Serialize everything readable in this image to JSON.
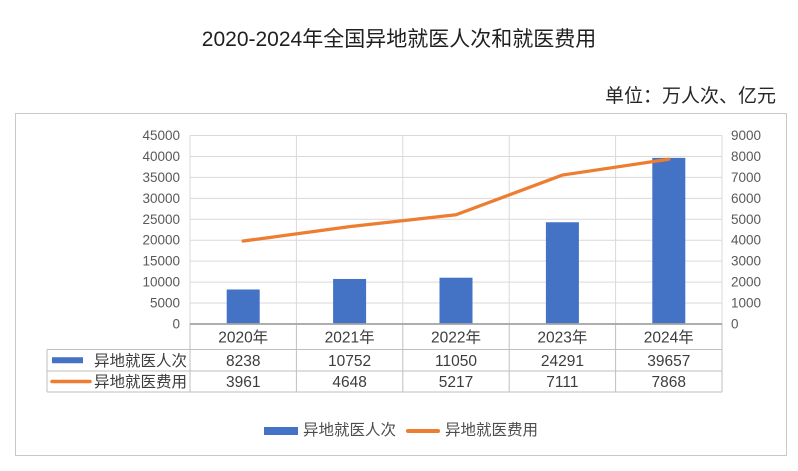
{
  "title": "2020-2024年全国异地就医人次和就医费用",
  "unit_note": "单位：万人次、亿元",
  "colors": {
    "bar_series": "#4472C4",
    "line_series": "#ED7D31",
    "gridline": "#d9d9d9",
    "axis_line": "#a3a3a3",
    "axis_text": "#595959",
    "table_border": "#bfbfbf",
    "table_text": "#3d3d3d",
    "title_text": "#1f1f1f",
    "legend_text": "#4d4d4d",
    "container_border": "#c9c9c9",
    "background": "#ffffff"
  },
  "chart_data": {
    "type": "bar+line combo",
    "title": "2020-2024年全国异地就医人次和就医费用",
    "unit_label": "单位：万人次、亿元",
    "categories": [
      "2020年",
      "2021年",
      "2022年",
      "2023年",
      "2024年"
    ],
    "series": [
      {
        "name": "异地就医人次",
        "type": "bar",
        "axis": "left",
        "color": "#4472C4",
        "values": [
          8238,
          10752,
          11050,
          24291,
          39657
        ]
      },
      {
        "name": "异地就医费用",
        "type": "line",
        "axis": "right",
        "color": "#ED7D31",
        "values": [
          3961,
          4648,
          5217,
          7111,
          7868
        ]
      }
    ],
    "left_axis": {
      "min": 0,
      "max": 45000,
      "step": 5000,
      "ticks": [
        "0",
        "5000",
        "10000",
        "15000",
        "20000",
        "25000",
        "30000",
        "35000",
        "40000",
        "45000"
      ]
    },
    "right_axis": {
      "min": 0,
      "max": 9000,
      "step": 1000,
      "ticks": [
        "0",
        "1000",
        "2000",
        "3000",
        "4000",
        "5000",
        "6000",
        "7000",
        "8000",
        "9000"
      ]
    },
    "grid": "horizontal and vertical category gridlines",
    "legend_position": "bottom",
    "data_table": "shown below x axis with legend keys"
  }
}
